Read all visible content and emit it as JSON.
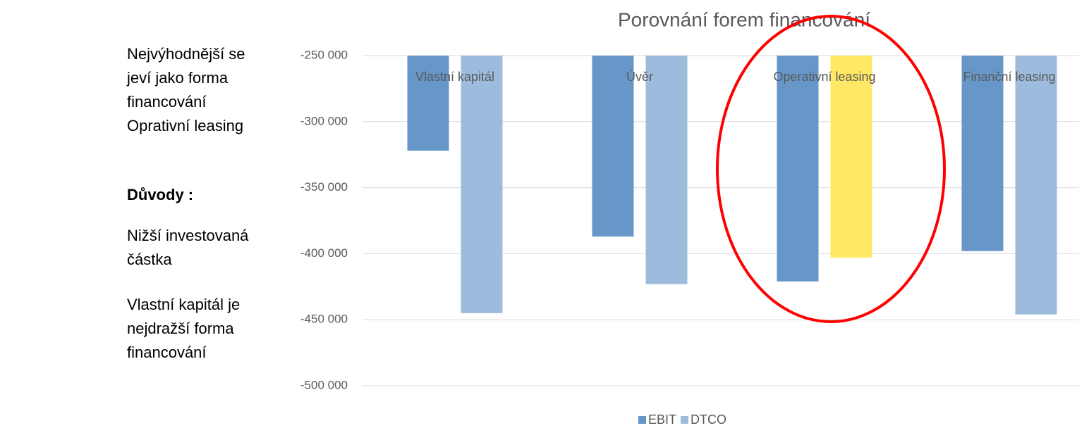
{
  "side_text": {
    "conclusion": "Nejvýhodnější se jeví jako forma financování Oprativní leasing",
    "reasons_heading": "Důvody :",
    "reasons": [
      "Nižší investovaná částka",
      "Vlastní kapitál je nejdražší forma financování"
    ]
  },
  "chart_data": {
    "type": "bar",
    "title": "Porovnání forem financování",
    "categories": [
      "Vlastní kapitál",
      "Úvěr",
      "Operativní leasing",
      "Finanční leasing"
    ],
    "series": [
      {
        "name": "EBIT",
        "color": "#6797c9",
        "values": [
          -322000,
          -387000,
          -421000,
          -398000
        ]
      },
      {
        "name": "DTCO",
        "color": "#9cbbdd",
        "colors": [
          "#9cbbdd",
          "#9cbbdd",
          "#ffe866",
          "#9cbbdd"
        ],
        "values": [
          -445000,
          -423000,
          -403000,
          -446000
        ]
      }
    ],
    "ylim": [
      -500000,
      -250000
    ],
    "yticks": [
      {
        "value": -500000,
        "label": "-500 000"
      },
      {
        "value": -450000,
        "label": "-450 000"
      },
      {
        "value": -400000,
        "label": "-400 000"
      },
      {
        "value": -350000,
        "label": "-350 000"
      },
      {
        "value": -300000,
        "label": "-300 000"
      },
      {
        "value": -250000,
        "label": "-250 000"
      }
    ],
    "grid": true,
    "legend": "bottom"
  }
}
